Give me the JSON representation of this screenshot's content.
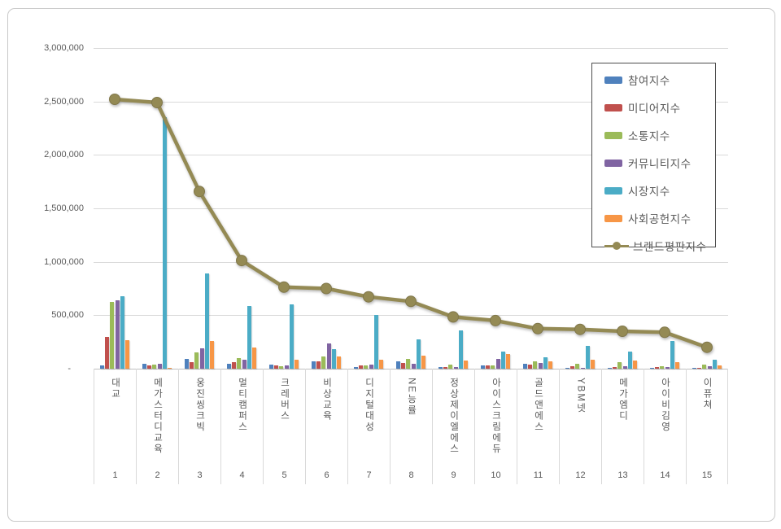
{
  "chart_data": {
    "type": "bar",
    "subtype": "clustered-bars-with-line-overlay",
    "title": "",
    "xlabel": "",
    "ylabel": "",
    "ylim": [
      0,
      3000000
    ],
    "y_tick_interval": 500000,
    "y_tick_labels": [
      "3,000,000",
      "2,500,000",
      "2,000,000",
      "1,500,000",
      "1,000,000",
      "500,000",
      "-"
    ],
    "grid": "horizontal",
    "legend_position": "upper-right-inside",
    "categories": [
      "대교",
      "메가스터디교육",
      "웅진씽크빅",
      "멀티캠퍼스",
      "크레버스",
      "비상교육",
      "디지털대성",
      "NE능률",
      "정상제이엘에스",
      "아이스크림에듀",
      "골드앤에스",
      "YBM넷",
      "메가엠디",
      "아이비김영",
      "이퓨쳐"
    ],
    "ranks": [
      "1",
      "2",
      "3",
      "4",
      "5",
      "6",
      "7",
      "8",
      "9",
      "10",
      "11",
      "12",
      "13",
      "14",
      "15"
    ],
    "series": [
      {
        "name": "참여지수",
        "type": "bar",
        "color": "#4F81BD",
        "values": [
          28000,
          48000,
          91000,
          46000,
          38000,
          71000,
          13000,
          66000,
          13000,
          28000,
          48000,
          8000,
          10000,
          10000,
          8000
        ]
      },
      {
        "name": "미디어지수",
        "type": "bar",
        "color": "#C0504D",
        "values": [
          297000,
          28000,
          65000,
          60000,
          30000,
          66000,
          28000,
          53000,
          12000,
          28000,
          38000,
          20000,
          19000,
          12000,
          8000
        ]
      },
      {
        "name": "소통지수",
        "type": "bar",
        "color": "#9BBB59",
        "values": [
          624000,
          40000,
          150000,
          100000,
          23000,
          112000,
          28000,
          94000,
          36000,
          33000,
          66000,
          46000,
          59000,
          23000,
          40000
        ]
      },
      {
        "name": "커뮤니티지수",
        "type": "bar",
        "color": "#8064A2",
        "values": [
          639000,
          48000,
          190000,
          82000,
          30000,
          238000,
          36000,
          48000,
          15000,
          91000,
          53000,
          10000,
          20000,
          12000,
          20000
        ]
      },
      {
        "name": "시장지수",
        "type": "bar",
        "color": "#4BACC6",
        "values": [
          680000,
          2350000,
          890000,
          590000,
          600000,
          180000,
          505000,
          274000,
          355000,
          162000,
          109000,
          211000,
          162000,
          256000,
          84000
        ]
      },
      {
        "name": "사회공헌지수",
        "type": "bar",
        "color": "#F79646",
        "values": [
          265000,
          8000,
          258000,
          197000,
          84000,
          117000,
          86000,
          122000,
          78000,
          135000,
          66000,
          84000,
          74000,
          59000,
          28000
        ]
      },
      {
        "name": "브랜드평판지수",
        "type": "line",
        "color": "#948A54",
        "marker": "circle",
        "values": [
          2520000,
          2490000,
          1658000,
          1012000,
          763000,
          750000,
          672000,
          630000,
          484000,
          450000,
          375000,
          368000,
          350000,
          340000,
          200000
        ]
      }
    ],
    "colors": {
      "gridline": "#d9d9d9",
      "axis_line": "#bfbfbf",
      "tick_text": "#595959",
      "line_marker_stroke": "#80774A",
      "canvas_border": "#c9c9c9"
    }
  }
}
